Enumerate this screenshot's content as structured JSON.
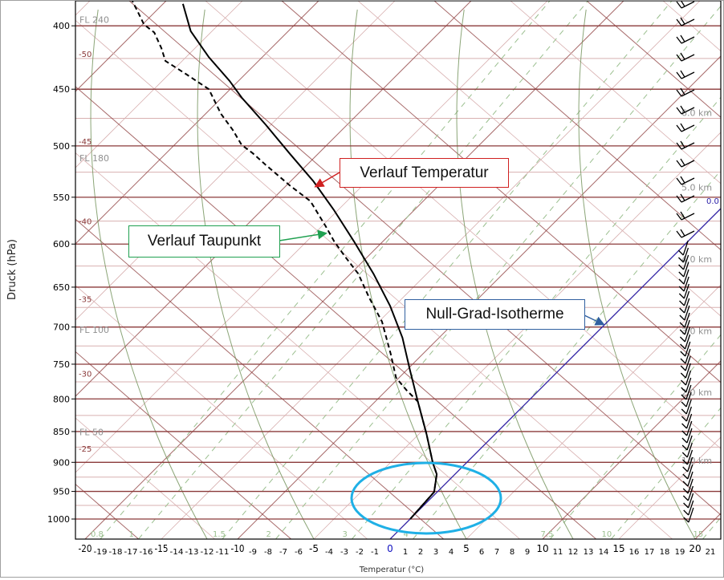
{
  "chart_data": {
    "type": "line",
    "subtype": "skew-T log-p diagram",
    "xlabel": "Temperatur (°C)",
    "ylabel": "Druck (hPa)",
    "pressure_ticks": [
      400,
      450,
      500,
      550,
      600,
      650,
      700,
      750,
      800,
      850,
      900,
      950,
      1000
    ],
    "temperature_ticks": [
      -20,
      -19,
      -18,
      -17,
      -16,
      -15,
      -14,
      -13,
      -12,
      -11,
      -10,
      -9,
      -8,
      -7,
      -6,
      -5,
      -4,
      -3,
      -2,
      -1,
      0,
      1,
      2,
      3,
      4,
      5,
      6,
      7,
      8,
      9,
      10,
      11,
      12,
      13,
      14,
      15,
      16,
      17,
      18,
      19,
      20,
      21
    ],
    "ylim": [
      1000,
      382
    ],
    "upper_isotherm_labels": [
      {
        "text": "-50",
        "p": 425
      },
      {
        "text": "-45",
        "p": 500
      },
      {
        "text": "-40",
        "p": 580
      },
      {
        "text": "-35",
        "p": 670
      },
      {
        "text": "-30",
        "p": 770
      },
      {
        "text": "-25",
        "p": 885
      }
    ],
    "flight_levels": [
      {
        "text": "FL 240",
        "p": 392
      },
      {
        "text": "FL 180",
        "p": 507
      },
      {
        "text": "FL 100",
        "p": 697
      },
      {
        "text": "FL 50",
        "p": 843
      }
    ],
    "height_labels": [
      {
        "text": "6.0 km",
        "p": 470
      },
      {
        "text": "5.0 km",
        "p": 540
      },
      {
        "text": "4.0 km",
        "p": 617
      },
      {
        "text": "3.0 km",
        "p": 705
      },
      {
        "text": "2.0 km",
        "p": 790
      },
      {
        "text": "1.0 km",
        "p": 897
      }
    ],
    "mixing_ratio_labels": [
      {
        "text": "0.8",
        "t": -19
      },
      {
        "text": "1",
        "t": -16.5
      },
      {
        "text": "1.5",
        "t": -11
      },
      {
        "text": "2",
        "t": -7.5
      },
      {
        "text": "3",
        "t": -2.5
      },
      {
        "text": "4",
        "t": 1.5
      },
      {
        "text": "7.5",
        "t": 10.5
      },
      {
        "text": "10",
        "t": 14.5
      },
      {
        "text": "15",
        "t": 20.5
      }
    ],
    "freezing_level_label": "0.0",
    "series": [
      {
        "name": "Temperatur",
        "style": "solid",
        "color": "#000000",
        "points": [
          [
            1000,
            0.0
          ],
          [
            951,
            -0.2
          ],
          [
            920,
            -1.2
          ],
          [
            901,
            -2.2
          ],
          [
            854,
            -4.5
          ],
          [
            804,
            -7.2
          ],
          [
            758,
            -9.8
          ],
          [
            714,
            -12.4
          ],
          [
            673,
            -15.3
          ],
          [
            634,
            -18.5
          ],
          [
            597,
            -21.9
          ],
          [
            563,
            -25.3
          ],
          [
            534,
            -28.5
          ],
          [
            507,
            -31.9
          ],
          [
            481,
            -35.3
          ],
          [
            457,
            -38.7
          ],
          [
            443,
            -40.6
          ],
          [
            424,
            -43.5
          ],
          [
            404,
            -46.4
          ],
          [
            384,
            -48.7
          ]
        ]
      },
      {
        "name": "Taupunkt",
        "style": "dashed",
        "color": "#000000",
        "points": [
          [
            1000,
            0.0
          ],
          [
            951,
            -0.2
          ],
          [
            920,
            -1.2
          ],
          [
            901,
            -2.2
          ],
          [
            854,
            -4.5
          ],
          [
            804,
            -7.2
          ],
          [
            787,
            -8.7
          ],
          [
            769,
            -10.2
          ],
          [
            736,
            -12.1
          ],
          [
            693,
            -14.8
          ],
          [
            663,
            -17.2
          ],
          [
            634,
            -19.5
          ],
          [
            615,
            -21.4
          ],
          [
            597,
            -23.2
          ],
          [
            581,
            -24.7
          ],
          [
            554,
            -27.4
          ],
          [
            538,
            -29.8
          ],
          [
            518,
            -32.7
          ],
          [
            507,
            -34.3
          ],
          [
            499,
            -35.6
          ],
          [
            485,
            -37.2
          ],
          [
            471,
            -39.0
          ],
          [
            450,
            -41.4
          ],
          [
            437,
            -44.0
          ],
          [
            427,
            -46.1
          ],
          [
            417,
            -47.2
          ],
          [
            405,
            -48.7
          ],
          [
            399,
            -49.9
          ],
          [
            390,
            -51.1
          ],
          [
            382,
            -52.2
          ]
        ]
      },
      {
        "name": "Null-Grad-Isotherme",
        "style": "solid",
        "color": "#2a1fa8",
        "isotherm": 0
      }
    ]
  },
  "annotations": {
    "temperature": "Verlauf Temperatur",
    "dewpoint": "Verlauf Taupunkt",
    "freezing": "Null-Grad-Isotherme"
  },
  "colors": {
    "isobar": "#8b3a3a",
    "isobar_light": "#d8b0b0",
    "mixing": "#9bbf8f",
    "moist": "#6e8f55",
    "iso0": "#2a1fa8",
    "ellipse": "#1fb0e6",
    "red_box": "#d02020",
    "green_box": "#20a050",
    "blue_box": "#3060a0"
  }
}
